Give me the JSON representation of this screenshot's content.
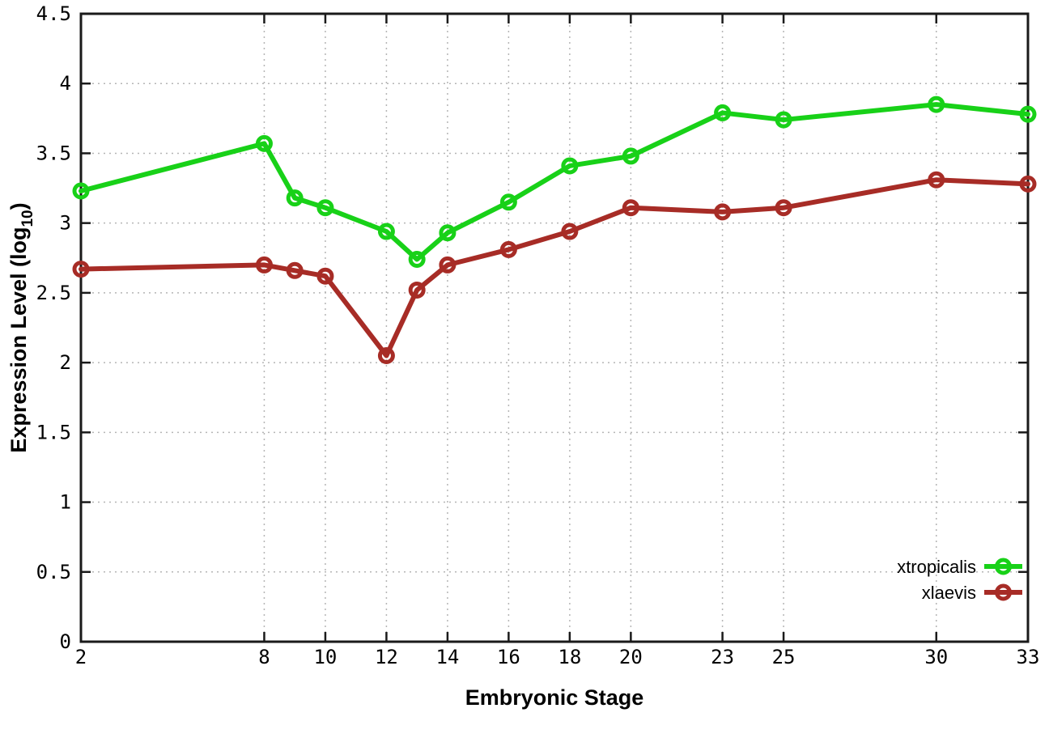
{
  "chart_data": {
    "type": "line",
    "title": "",
    "xlabel": "Embryonic Stage",
    "ylabel": "Expression Level (log10)",
    "ylabel_parts": {
      "pre": "Expression Level (log",
      "sub": "10",
      "post": ")"
    },
    "x": [
      2,
      8,
      9,
      10,
      12,
      13,
      14,
      16,
      18,
      20,
      23,
      25,
      30,
      33
    ],
    "series": [
      {
        "name": "xtropicalis",
        "color": "#18d118",
        "marker": "open-circle",
        "values": [
          3.23,
          3.57,
          3.18,
          3.11,
          2.94,
          2.74,
          2.93,
          3.15,
          3.41,
          3.48,
          3.79,
          3.74,
          3.85,
          3.78
        ]
      },
      {
        "name": "xlaevis",
        "color": "#a72c26",
        "marker": "open-circle",
        "values": [
          2.67,
          2.7,
          2.66,
          2.62,
          2.05,
          2.52,
          2.7,
          2.81,
          2.94,
          3.11,
          3.08,
          3.11,
          3.31,
          3.28
        ]
      }
    ],
    "xlim": [
      2,
      33
    ],
    "ylim": [
      0,
      4.5
    ],
    "xticks": [
      2,
      8,
      10,
      12,
      14,
      16,
      18,
      20,
      23,
      25,
      30,
      33
    ],
    "yticks": [
      0,
      0.5,
      1,
      1.5,
      2,
      2.5,
      3,
      3.5,
      4,
      4.5
    ],
    "grid": true,
    "grid_style": "dotted",
    "grid_color": "#b5b5b5",
    "border_color": "#1a1a1a",
    "background_color": "#ffffff",
    "legend_position": "bottom-right"
  }
}
